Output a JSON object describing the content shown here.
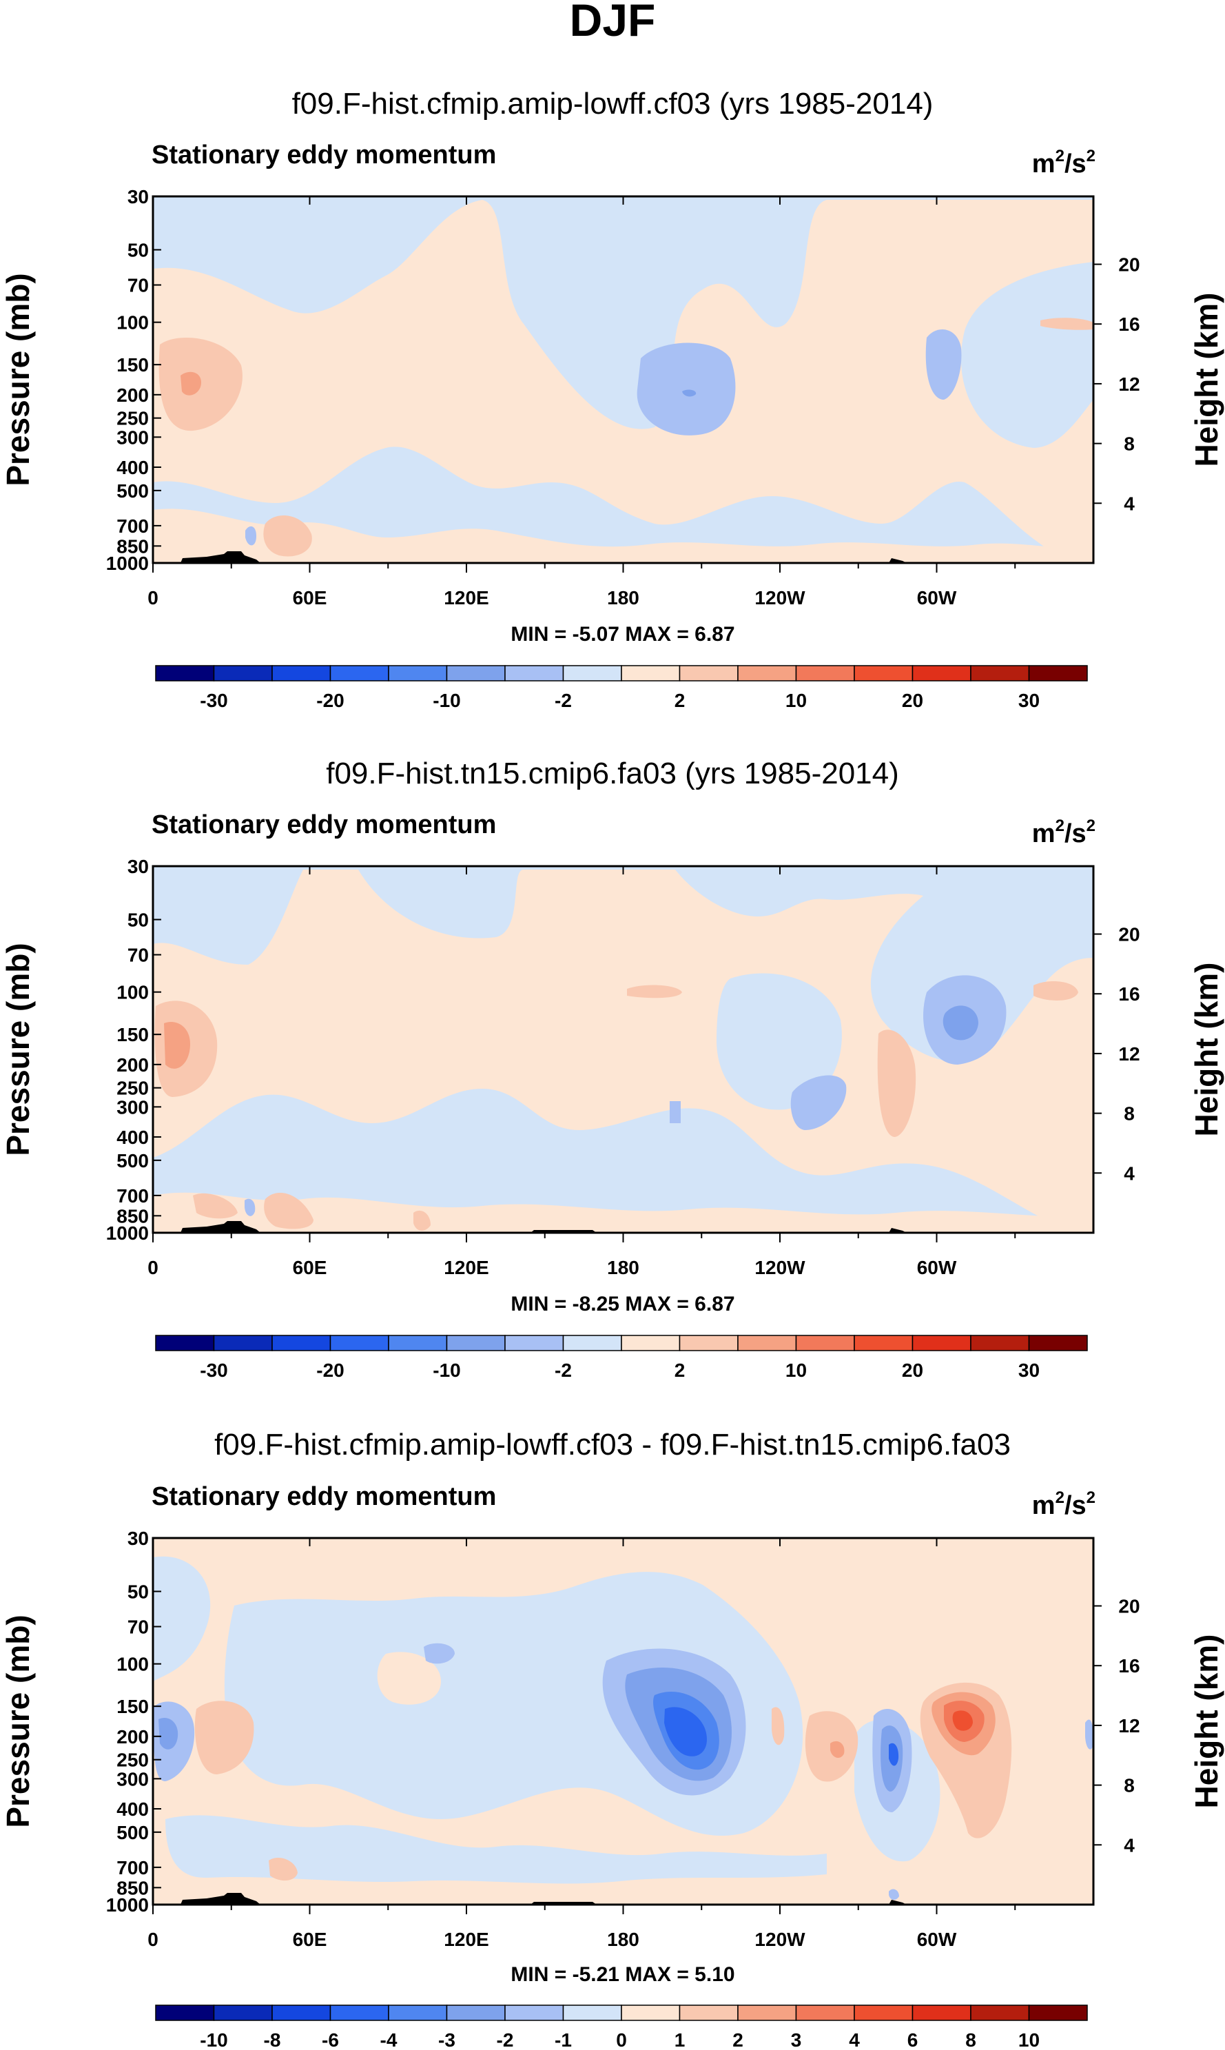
{
  "figure": {
    "title": "DJF"
  },
  "chart_data": [
    {
      "type": "heatmap",
      "title": "f09.F-hist.cfmip.amip-lowff.cf03 (yrs 1985-2014)",
      "subtitle": "Stationary eddy momentum",
      "units": [
        "m",
        "2",
        "/s",
        "2"
      ],
      "xlabel": "",
      "ylabel": "Pressure (mb)",
      "ylabel_right": "Height (km)",
      "x_ticks": [
        "0",
        "60E",
        "120E",
        "180",
        "120W",
        "60W"
      ],
      "x_tick_lon": [
        0,
        60,
        120,
        180,
        240,
        300
      ],
      "xlim": [
        0,
        360
      ],
      "y_ticks": [
        "30",
        "50",
        "70",
        "100",
        "150",
        "200",
        "250",
        "300",
        "400",
        "500",
        "700",
        "850",
        "1000"
      ],
      "ylim": [
        1000,
        30
      ],
      "y_right_ticks": [
        "20",
        "16",
        "12",
        "8",
        "4"
      ],
      "stats_text": "MIN = -5.07  MAX = 6.87",
      "min": -5.07,
      "max": 6.87,
      "colorbar": {
        "labels": [
          "-30",
          "-20",
          "-10",
          "-2",
          "2",
          "10",
          "20",
          "30"
        ],
        "levels": [
          -35,
          -30,
          -25,
          -20,
          -15,
          -10,
          -5,
          -2,
          0,
          2,
          5,
          10,
          15,
          20,
          25,
          30,
          35
        ]
      }
    },
    {
      "type": "heatmap",
      "title": "f09.F-hist.tn15.cmip6.fa03 (yrs 1985-2014)",
      "subtitle": "Stationary eddy momentum",
      "units": [
        "m",
        "2",
        "/s",
        "2"
      ],
      "xlabel": "",
      "ylabel": "Pressure (mb)",
      "ylabel_right": "Height (km)",
      "x_ticks": [
        "0",
        "60E",
        "120E",
        "180",
        "120W",
        "60W"
      ],
      "x_tick_lon": [
        0,
        60,
        120,
        180,
        240,
        300
      ],
      "xlim": [
        0,
        360
      ],
      "y_ticks": [
        "30",
        "50",
        "70",
        "100",
        "150",
        "200",
        "250",
        "300",
        "400",
        "500",
        "700",
        "850",
        "1000"
      ],
      "ylim": [
        1000,
        30
      ],
      "y_right_ticks": [
        "20",
        "16",
        "12",
        "8",
        "4"
      ],
      "stats_text": "MIN = -8.25  MAX = 6.87",
      "min": -8.25,
      "max": 6.87,
      "colorbar": {
        "labels": [
          "-30",
          "-20",
          "-10",
          "-2",
          "2",
          "10",
          "20",
          "30"
        ],
        "levels": [
          -35,
          -30,
          -25,
          -20,
          -15,
          -10,
          -5,
          -2,
          0,
          2,
          5,
          10,
          15,
          20,
          25,
          30,
          35
        ]
      }
    },
    {
      "type": "heatmap",
      "title": "f09.F-hist.cfmip.amip-lowff.cf03 - f09.F-hist.tn15.cmip6.fa03",
      "subtitle": "Stationary eddy momentum",
      "units": [
        "m",
        "2",
        "/s",
        "2"
      ],
      "xlabel": "",
      "ylabel": "Pressure (mb)",
      "ylabel_right": "Height (km)",
      "x_ticks": [
        "0",
        "60E",
        "120E",
        "180",
        "120W",
        "60W"
      ],
      "x_tick_lon": [
        0,
        60,
        120,
        180,
        240,
        300
      ],
      "xlim": [
        0,
        360
      ],
      "y_ticks": [
        "30",
        "50",
        "70",
        "100",
        "150",
        "200",
        "250",
        "300",
        "400",
        "500",
        "700",
        "850",
        "1000"
      ],
      "ylim": [
        1000,
        30
      ],
      "y_right_ticks": [
        "20",
        "16",
        "12",
        "8",
        "4"
      ],
      "stats_text": "MIN = -5.21  MAX = 5.10",
      "min": -5.21,
      "max": 5.1,
      "colorbar": {
        "labels": [
          "-10",
          "-8",
          "-6",
          "-4",
          "-3",
          "-2",
          "-1",
          "0",
          "1",
          "2",
          "3",
          "4",
          "6",
          "8",
          "10"
        ],
        "levels": [
          -12,
          -10,
          -8,
          -6,
          -4,
          -3,
          -2,
          -1,
          0,
          1,
          2,
          3,
          4,
          6,
          8,
          10,
          12
        ]
      }
    }
  ],
  "colors": {
    "scale": [
      "#000078",
      "#0a2ab8",
      "#1447e0",
      "#2b66f0",
      "#4f86f0",
      "#7ea2ec",
      "#a8c0f4",
      "#d3e4f8",
      "#fde6d4",
      "#f9c8b0",
      "#f5a283",
      "#f2795a",
      "#ee5030",
      "#e0301a",
      "#b41e0e",
      "#780000"
    ],
    "terrain": "#000000"
  }
}
